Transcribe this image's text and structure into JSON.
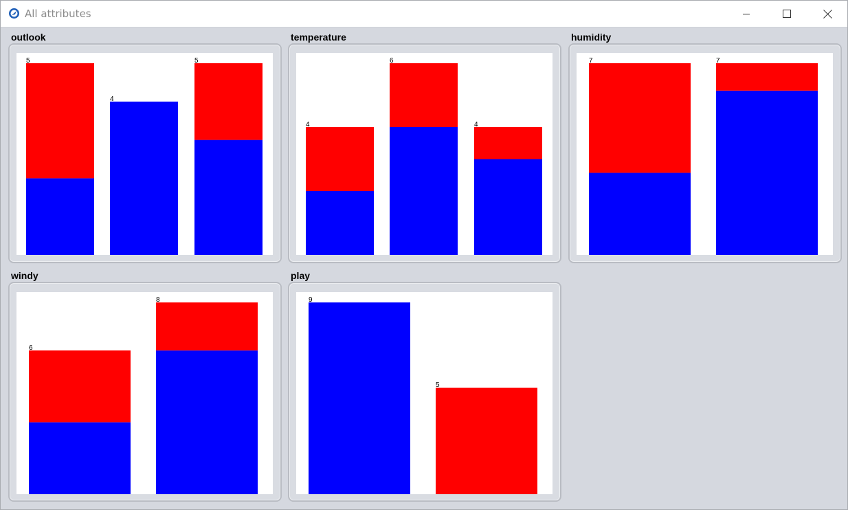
{
  "window": {
    "title": "All attributes",
    "controls": [
      "minimize-icon",
      "maximize-icon",
      "close-icon"
    ]
  },
  "colors": {
    "blue": "#0000ff",
    "red": "#ff0000",
    "panel_bg": "#d5d8df"
  },
  "panels": [
    {
      "key": "outlook",
      "title": "outlook"
    },
    {
      "key": "temperature",
      "title": "temperature"
    },
    {
      "key": "humidity",
      "title": "humidity"
    },
    {
      "key": "windy",
      "title": "windy"
    },
    {
      "key": "play",
      "title": "play"
    }
  ],
  "chart_data": [
    {
      "type": "bar",
      "title": "outlook",
      "stacked": true,
      "ylim": [
        0,
        5
      ],
      "series": [
        {
          "color": "#0000ff",
          "values": [
            2,
            4,
            3
          ]
        },
        {
          "color": "#ff0000",
          "values": [
            3,
            0,
            2
          ]
        }
      ],
      "totals": [
        5,
        4,
        5
      ]
    },
    {
      "type": "bar",
      "title": "temperature",
      "stacked": true,
      "ylim": [
        0,
        6
      ],
      "series": [
        {
          "color": "#0000ff",
          "values": [
            2,
            4,
            3
          ]
        },
        {
          "color": "#ff0000",
          "values": [
            2,
            2,
            1
          ]
        }
      ],
      "totals": [
        4,
        6,
        4
      ]
    },
    {
      "type": "bar",
      "title": "humidity",
      "stacked": true,
      "ylim": [
        0,
        7
      ],
      "series": [
        {
          "color": "#0000ff",
          "values": [
            3,
            6
          ]
        },
        {
          "color": "#ff0000",
          "values": [
            4,
            1
          ]
        }
      ],
      "totals": [
        7,
        7
      ]
    },
    {
      "type": "bar",
      "title": "windy",
      "stacked": true,
      "ylim": [
        0,
        8
      ],
      "series": [
        {
          "color": "#0000ff",
          "values": [
            3,
            6
          ]
        },
        {
          "color": "#ff0000",
          "values": [
            3,
            2
          ]
        }
      ],
      "totals": [
        6,
        8
      ]
    },
    {
      "type": "bar",
      "title": "play",
      "stacked": true,
      "ylim": [
        0,
        9
      ],
      "series": [
        {
          "color": "#0000ff",
          "values": [
            9,
            0
          ]
        },
        {
          "color": "#ff0000",
          "values": [
            0,
            5
          ]
        }
      ],
      "totals": [
        9,
        5
      ]
    }
  ]
}
